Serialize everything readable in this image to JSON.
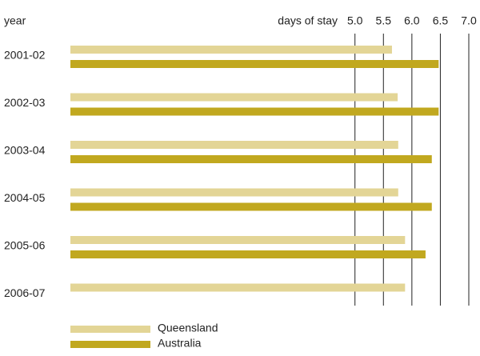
{
  "chart_data": {
    "type": "bar",
    "orientation": "horizontal",
    "y_label": "year",
    "x_label": "days of stay",
    "categories": [
      "2001-02",
      "2002-03",
      "2003-04",
      "2004-05",
      "2005-06",
      "2006-07"
    ],
    "series": [
      {
        "name": "Queensland",
        "color": "#e3d596",
        "values": [
          5.65,
          5.75,
          5.76,
          5.76,
          5.88,
          5.88
        ]
      },
      {
        "name": "Australia",
        "color": "#c1a81f",
        "values": [
          6.47,
          6.47,
          6.35,
          6.35,
          6.24,
          null
        ]
      }
    ],
    "xlim": [
      0,
      7
    ],
    "xticks": [
      {
        "value": 5,
        "label": "5.0"
      },
      {
        "value": 5.5,
        "label": "5.5"
      },
      {
        "value": 6,
        "label": "6.0"
      },
      {
        "value": 6.5,
        "label": "6.5"
      },
      {
        "value": 7,
        "label": "7.0"
      }
    ],
    "grid": true
  }
}
